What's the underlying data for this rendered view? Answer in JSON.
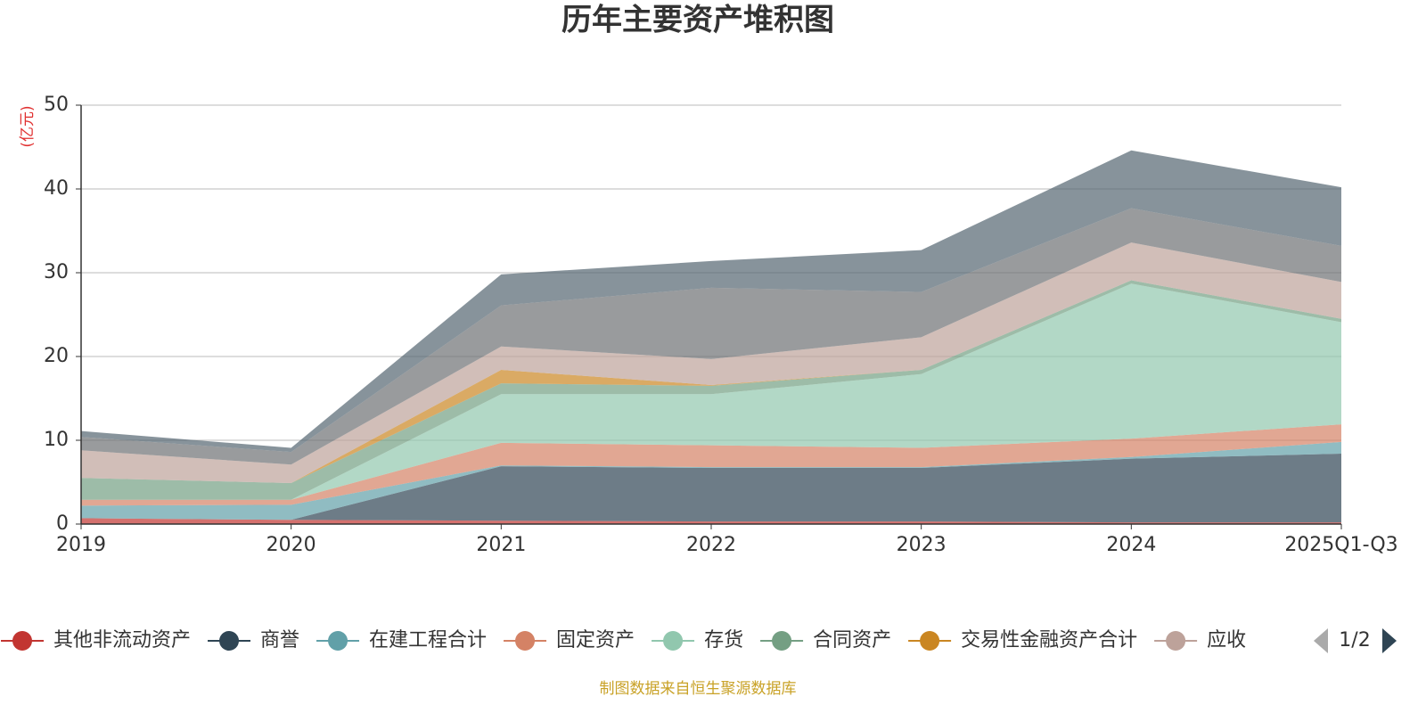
{
  "chart_data": {
    "type": "stacked-area",
    "title": "历年主要资产堆积图",
    "y_label": "(亿元)",
    "source": "制图数据来自恒生聚源数据库",
    "legend_page": "1/2",
    "categories": [
      "2019",
      "2020",
      "2021",
      "2022",
      "2023",
      "2024",
      "2025Q1-Q3"
    ],
    "ylim": [
      0,
      50
    ],
    "yticks": [
      0,
      10,
      20,
      30,
      40,
      50
    ],
    "grid": true,
    "series": [
      {
        "name": "其他非流动资产",
        "color": "#c23531",
        "values": [
          0.7,
          0.5,
          0.4,
          0.3,
          0.3,
          0.2,
          0.2
        ]
      },
      {
        "name": "商誉",
        "color": "#2f4554",
        "values": [
          0,
          0,
          6.5,
          6.4,
          6.4,
          7.6,
          8.2
        ]
      },
      {
        "name": "在建工程合计",
        "color": "#61a0a8",
        "values": [
          1.5,
          1.8,
          0.1,
          0.1,
          0.1,
          0.2,
          1.4
        ]
      },
      {
        "name": "固定资产",
        "color": "#d48265",
        "values": [
          0.7,
          0.6,
          2.7,
          2.6,
          2.3,
          2.2,
          2.1
        ]
      },
      {
        "name": "存货",
        "color": "#91c7ae",
        "values": [
          0,
          0,
          5.8,
          6.1,
          8.8,
          18.5,
          12.2
        ]
      },
      {
        "name": "合同资产",
        "color": "#749f83",
        "values": [
          2.6,
          2.0,
          1.3,
          1.0,
          0.5,
          0.4,
          0.4
        ]
      },
      {
        "name": "交易性金融资产合计",
        "color": "#ca8622",
        "values": [
          0,
          0,
          1.6,
          0.1,
          0,
          0,
          0
        ]
      },
      {
        "name": "应收",
        "color": "#bda29a",
        "values": [
          3.3,
          2.2,
          2.8,
          3.1,
          3.9,
          4.5,
          4.4
        ]
      },
      {
        "color": "#6e7074",
        "values": [
          1.6,
          1.5,
          4.9,
          8.5,
          5.4,
          4.1,
          4.3
        ]
      },
      {
        "color": "#546570",
        "values": [
          0.7,
          0.5,
          3.7,
          3.2,
          5.0,
          6.9,
          7.0
        ]
      }
    ]
  }
}
